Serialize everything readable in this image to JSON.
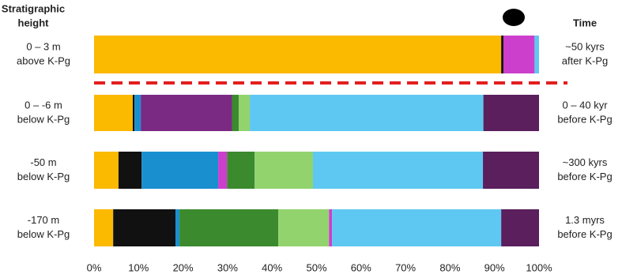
{
  "chart_data": {
    "type": "stacked-bar",
    "y_header": [
      "Stratigraphic",
      "height"
    ],
    "right_header": "Time",
    "rows": [
      {
        "label": [
          "0 – 3 m",
          "above K-Pg"
        ],
        "right_label": [
          "~50 kyrs",
          "after K-Pg"
        ],
        "segments": [
          {
            "color": "#fbb900",
            "value": 91.5
          },
          {
            "color": "#111111",
            "value": 0.5
          },
          {
            "color": "#cc3fcc",
            "value": 7
          },
          {
            "color": "#5ec8f2",
            "value": 1
          }
        ]
      },
      {
        "label": [
          "0 – -6 m",
          "below K-Pg"
        ],
        "right_label": [
          "0 – 40 kyr",
          "before K-Pg"
        ],
        "segments": [
          {
            "color": "#fbb900",
            "value": 8.7
          },
          {
            "color": "#111111",
            "value": 0.4
          },
          {
            "color": "#1a8fd0",
            "value": 1.4
          },
          {
            "color": "#7b2a84",
            "value": 20.5
          },
          {
            "color": "#3b8a2e",
            "value": 1.5
          },
          {
            "color": "#92d36e",
            "value": 2.5
          },
          {
            "color": "#5ec8f2",
            "value": 52.5
          },
          {
            "color": "#5a1f5c",
            "value": 12.5
          }
        ]
      },
      {
        "label": [
          "-50 m",
          "below K-Pg"
        ],
        "right_label": [
          "~300 kyrs",
          "before K-Pg"
        ],
        "segments": [
          {
            "color": "#fbb900",
            "value": 5.5
          },
          {
            "color": "#111111",
            "value": 5.2
          },
          {
            "color": "#1a8fd0",
            "value": 17.2
          },
          {
            "color": "#cc3fcc",
            "value": 2
          },
          {
            "color": "#3b8a2e",
            "value": 6.2
          },
          {
            "color": "#92d36e",
            "value": 13.1
          },
          {
            "color": "#5ec8f2",
            "value": 38.2
          },
          {
            "color": "#5a1f5c",
            "value": 12.6
          }
        ]
      },
      {
        "label": [
          "-170 m",
          "below K-Pg"
        ],
        "right_label": [
          "1.3 myrs",
          "before K-Pg"
        ],
        "segments": [
          {
            "color": "#fbb900",
            "value": 4.3
          },
          {
            "color": "#111111",
            "value": 14
          },
          {
            "color": "#1a8fd0",
            "value": 0.9
          },
          {
            "color": "#3b8a2e",
            "value": 22.2
          },
          {
            "color": "#92d36e",
            "value": 11.4
          },
          {
            "color": "#cc3fcc",
            "value": 0.7
          },
          {
            "color": "#5ec8f2",
            "value": 38
          },
          {
            "color": "#5a1f5c",
            "value": 8.5
          }
        ]
      }
    ],
    "xlim": [
      0,
      100
    ],
    "xticks": [
      {
        "value": 0,
        "label": "0%"
      },
      {
        "value": 10,
        "label": "10%"
      },
      {
        "value": 20,
        "label": "20%"
      },
      {
        "value": 30,
        "label": "30%"
      },
      {
        "value": 40,
        "label": "40%"
      },
      {
        "value": 50,
        "label": "50%"
      },
      {
        "value": 60,
        "label": "60%"
      },
      {
        "value": 70,
        "label": "70%"
      },
      {
        "value": 80,
        "label": "80%"
      },
      {
        "value": 90,
        "label": "90%"
      },
      {
        "value": 100,
        "label": "100%"
      }
    ],
    "divider_color": "#e41e1e"
  }
}
